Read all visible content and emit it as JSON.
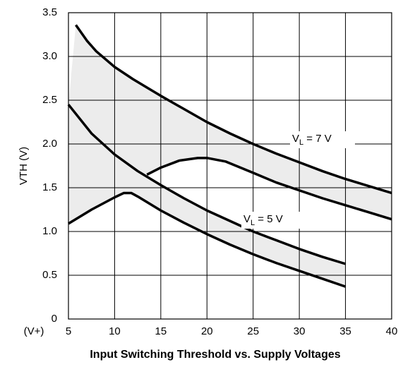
{
  "chart_data": {
    "type": "line",
    "title": "Input Switching Threshold vs. Supply Voltages",
    "y_label": "VTH (V)",
    "x_unit_label": "(V+)",
    "xlim": [
      5,
      40
    ],
    "xticks": [
      5,
      10,
      15,
      20,
      25,
      30,
      35,
      40
    ],
    "ylim": [
      0,
      3.5
    ],
    "yticks": [
      0,
      0.5,
      {
        "value": 1,
        "label": "1.0"
      },
      1.5,
      {
        "value": 2,
        "label": "2.0"
      },
      2.5,
      {
        "value": 3,
        "label": "3.0"
      },
      3.5
    ],
    "grid": true,
    "color": "#000000",
    "band_color": "#ececec",
    "annotations": [
      {
        "main": "V",
        "sub": "L",
        "rest": " = 7 V"
      },
      {
        "main": "V",
        "sub": "L",
        "rest": " = 5 V"
      }
    ],
    "series": [
      {
        "x": [
          5.8,
          7,
          8,
          10,
          12,
          15,
          17.5,
          20,
          22.5,
          25,
          27.5,
          30,
          32.5,
          35,
          37.5,
          40
        ],
        "values": [
          3.36,
          3.18,
          3.06,
          2.88,
          2.74,
          2.55,
          2.4,
          2.25,
          2.12,
          2.0,
          1.89,
          1.79,
          1.69,
          1.6,
          1.52,
          1.44
        ]
      },
      {
        "x": [
          13.5,
          15,
          17,
          19,
          20,
          22,
          25,
          27.5,
          30,
          32.5,
          35,
          37.5,
          40
        ],
        "values": [
          1.65,
          1.73,
          1.81,
          1.84,
          1.84,
          1.8,
          1.67,
          1.56,
          1.47,
          1.38,
          1.3,
          1.22,
          1.14
        ]
      },
      {
        "x": [
          5,
          7.5,
          10,
          12.5,
          15,
          17.5,
          20,
          22.5,
          25,
          27.5,
          30,
          32.5,
          35
        ],
        "values": [
          2.45,
          2.12,
          1.88,
          1.69,
          1.53,
          1.38,
          1.24,
          1.12,
          1.0,
          0.9,
          0.8,
          0.71,
          0.63
        ]
      },
      {
        "x": [
          5,
          7.5,
          10,
          11,
          11.8,
          12.5,
          15,
          17.5,
          20,
          22.5,
          25,
          27.5,
          30,
          32.5,
          35
        ],
        "values": [
          1.09,
          1.25,
          1.39,
          1.44,
          1.44,
          1.4,
          1.24,
          1.1,
          0.97,
          0.85,
          0.74,
          0.64,
          0.55,
          0.46,
          0.37
        ]
      }
    ]
  }
}
